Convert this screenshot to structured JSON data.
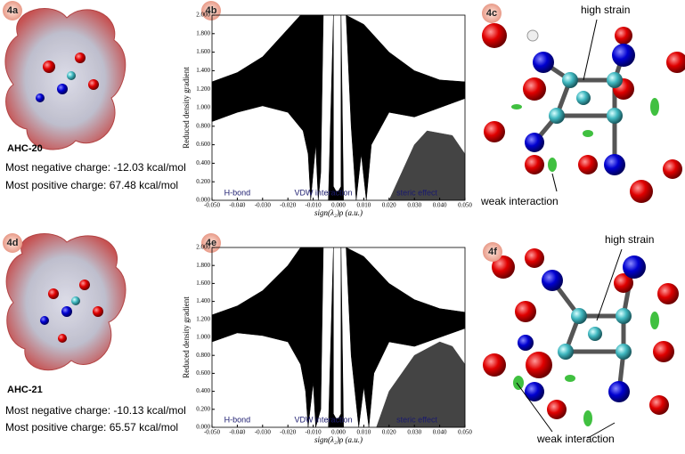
{
  "panels": [
    "4a",
    "4b",
    "4c",
    "4d",
    "4e",
    "4f"
  ],
  "molecules": [
    {
      "name": "AHC-20",
      "negative": "Most negative charge: -12.03 kcal/mol",
      "positive": "Most positive charge: 67.48 kcal/mol"
    },
    {
      "name": "AHC-21",
      "negative": "Most negative charge: -10.13 kcal/mol",
      "positive": "Most positive charge: 65.57 kcal/mol"
    }
  ],
  "callouts": [
    {
      "high": "high strain",
      "weak": "weak interaction"
    },
    {
      "high": "high strain",
      "weak": "weak interaction"
    }
  ],
  "chart_data": [
    {
      "type": "area",
      "ylabel": "Reduced density gradient",
      "xlabel": "sign(λ₂)ρ (a.u.)",
      "annotations": [
        "H-bond",
        "VDW interaction",
        "steric effect"
      ],
      "xlim": [
        -0.05,
        0.05
      ],
      "ylim": [
        0,
        2
      ],
      "xticks": [
        {
          "value": -0.05,
          "label": "-0.050"
        },
        {
          "value": -0.04,
          "label": "-0.040"
        },
        {
          "value": -0.03,
          "label": "-0.030"
        },
        {
          "value": -0.02,
          "label": "-0.020"
        },
        {
          "value": -0.01,
          "label": "-0.010"
        },
        {
          "value": 0,
          "label": "0.000"
        },
        {
          "value": 0.01,
          "label": "0.010"
        },
        {
          "value": 0.02,
          "label": "0.020"
        },
        {
          "value": 0.03,
          "label": "0.030"
        },
        {
          "value": 0.04,
          "label": "0.040"
        },
        {
          "value": 0.05,
          "label": "0.050"
        }
      ],
      "yticks": [
        {
          "value": 0,
          "label": "0.000"
        },
        {
          "value": 0.2,
          "label": "0.200"
        },
        {
          "value": 0.4,
          "label": "0.400"
        },
        {
          "value": 0.6,
          "label": "0.600"
        },
        {
          "value": 0.8,
          "label": "0.800"
        },
        {
          "value": 1,
          "label": "1.000"
        },
        {
          "value": 1.2,
          "label": "1.200"
        },
        {
          "value": 1.4,
          "label": "1.400"
        },
        {
          "value": 1.6,
          "label": "1.600"
        },
        {
          "value": 1.8,
          "label": "1.800"
        },
        {
          "value": 2,
          "label": "2.000"
        }
      ],
      "series": [
        {
          "color": "#000000",
          "x": [
            -0.05,
            -0.04,
            -0.03,
            -0.02,
            -0.015,
            -0.006,
            -0.007,
            -0.008,
            -0.009,
            -0.011,
            -0.012,
            -0.014,
            -0.02,
            -0.03,
            -0.04,
            -0.05
          ],
          "values": [
            1.28,
            1.38,
            1.55,
            1.85,
            2.0,
            2.0,
            0.3,
            0.0,
            0.6,
            0.0,
            0.5,
            0.75,
            0.95,
            1.02,
            0.95,
            0.85
          ]
        },
        {
          "color": "#000000",
          "x": [
            -0.004,
            -0.002,
            -0.002,
            -0.001,
            0.0,
            0.001,
            0.001,
            0.002
          ],
          "values": [
            0.0,
            2.0,
            0.15,
            0.1,
            0.1,
            0.15,
            2.0,
            0.0
          ]
        },
        {
          "color": "#000000",
          "x": [
            0.003,
            0.01,
            0.02,
            0.03,
            0.04,
            0.05,
            0.05,
            0.04,
            0.03,
            0.02,
            0.013,
            0.011,
            0.009,
            0.007,
            0.005
          ],
          "values": [
            2.0,
            1.9,
            1.6,
            1.4,
            1.3,
            1.28,
            1.1,
            1.0,
            0.9,
            0.95,
            0.6,
            0.0,
            0.5,
            0.0,
            0.8
          ]
        },
        {
          "color": "#444444",
          "x": [
            0.02,
            0.025,
            0.03,
            0.035,
            0.045,
            0.05,
            0.05
          ],
          "values": [
            0.0,
            0.3,
            0.6,
            0.75,
            0.7,
            0.5,
            0.0
          ]
        }
      ]
    },
    {
      "type": "area",
      "ylabel": "Reduced density gradient",
      "xlabel": "sign(λ₂)ρ (a.u.)",
      "annotations": [
        "H-bond",
        "VDW interaction",
        "steric effect"
      ],
      "xlim": [
        -0.05,
        0.05
      ],
      "ylim": [
        0,
        2
      ],
      "xticks": [
        {
          "value": -0.05,
          "label": "-0.050"
        },
        {
          "value": -0.04,
          "label": "-0.040"
        },
        {
          "value": -0.03,
          "label": "-0.030"
        },
        {
          "value": -0.02,
          "label": "-0.020"
        },
        {
          "value": -0.01,
          "label": "-0.010"
        },
        {
          "value": 0,
          "label": "0.000"
        },
        {
          "value": 0.01,
          "label": "0.010"
        },
        {
          "value": 0.02,
          "label": "0.020"
        },
        {
          "value": 0.03,
          "label": "0.030"
        },
        {
          "value": 0.04,
          "label": "0.040"
        },
        {
          "value": 0.05,
          "label": "0.050"
        }
      ],
      "yticks": [
        {
          "value": 0,
          "label": "0.000"
        },
        {
          "value": 0.2,
          "label": "0.200"
        },
        {
          "value": 0.4,
          "label": "0.400"
        },
        {
          "value": 0.6,
          "label": "0.600"
        },
        {
          "value": 0.8,
          "label": "0.800"
        },
        {
          "value": 1,
          "label": "1.000"
        },
        {
          "value": 1.2,
          "label": "1.200"
        },
        {
          "value": 1.4,
          "label": "1.400"
        },
        {
          "value": 1.6,
          "label": "1.600"
        },
        {
          "value": 1.8,
          "label": "1.800"
        },
        {
          "value": 2,
          "label": "2.000"
        }
      ],
      "series": [
        {
          "color": "#000000",
          "x": [
            -0.05,
            -0.04,
            -0.03,
            -0.02,
            -0.015,
            -0.006,
            -0.007,
            -0.009,
            -0.01,
            -0.012,
            -0.013,
            -0.015,
            -0.02,
            -0.03,
            -0.04,
            -0.05
          ],
          "values": [
            1.25,
            1.35,
            1.52,
            1.8,
            2.0,
            2.0,
            0.2,
            0.0,
            0.5,
            0.0,
            0.4,
            0.7,
            0.95,
            1.02,
            1.05,
            0.95
          ]
        },
        {
          "color": "#000000",
          "x": [
            -0.004,
            -0.002,
            -0.002,
            -0.001,
            0.0,
            0.001,
            0.001,
            0.002
          ],
          "values": [
            0.0,
            2.0,
            0.15,
            0.1,
            0.1,
            0.15,
            2.0,
            0.0
          ]
        },
        {
          "color": "#000000",
          "x": [
            0.003,
            0.01,
            0.02,
            0.03,
            0.04,
            0.05,
            0.05,
            0.04,
            0.03,
            0.02,
            0.014,
            0.012,
            0.01,
            0.008,
            0.005
          ],
          "values": [
            2.0,
            1.9,
            1.6,
            1.42,
            1.32,
            1.28,
            1.1,
            1.0,
            0.9,
            0.95,
            0.6,
            0.0,
            0.45,
            0.0,
            0.8
          ]
        },
        {
          "color": "#444444",
          "x": [
            0.015,
            0.02,
            0.03,
            0.04,
            0.045,
            0.05,
            0.05
          ],
          "values": [
            0.0,
            0.4,
            0.8,
            0.95,
            0.9,
            0.7,
            0.0
          ]
        }
      ]
    }
  ]
}
